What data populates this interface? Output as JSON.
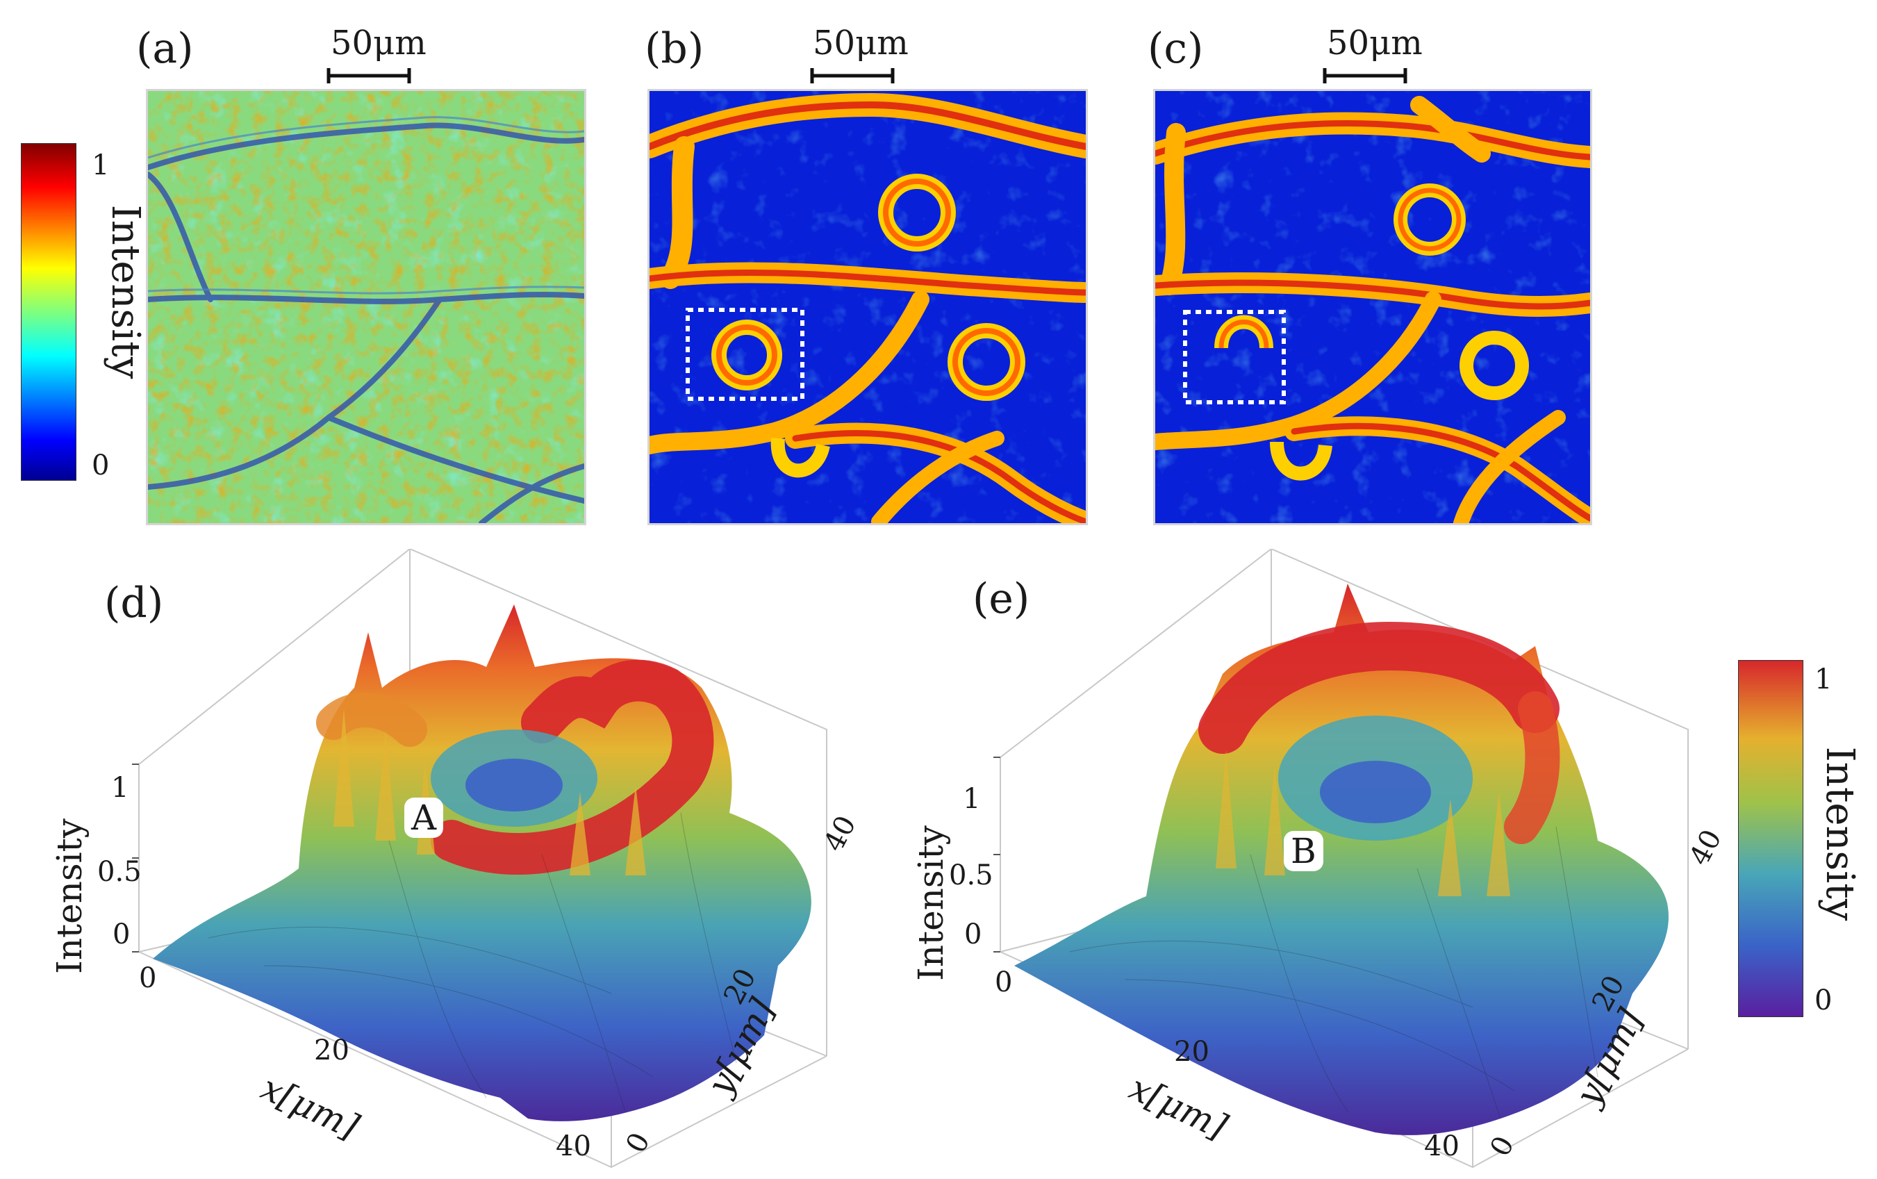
{
  "figure": {
    "panels": [
      {
        "id": "a",
        "label": "(a)",
        "scale_bar": "50μm"
      },
      {
        "id": "b",
        "label": "(b)",
        "scale_bar": "50μm"
      },
      {
        "id": "c",
        "label": "(c)",
        "scale_bar": "50μm"
      },
      {
        "id": "d",
        "label": "(d)",
        "peak_label": "A"
      },
      {
        "id": "e",
        "label": "(e)",
        "peak_label": "B"
      }
    ],
    "colorbars": [
      {
        "title": "Intensity",
        "max_label": "1",
        "min_label": "0",
        "colormap": "jet"
      },
      {
        "title": "Intensity",
        "max_label": "1",
        "min_label": "0",
        "colormap": "rainbow"
      }
    ],
    "surface_axes": {
      "x_title": "x[μm]",
      "y_title": "y[μm]",
      "z_title": "Intensity",
      "x_ticks": [
        "0",
        "20",
        "40"
      ],
      "y_ticks": [
        "0",
        "20",
        "40"
      ],
      "z_ticks": [
        "1",
        "0.5",
        "0"
      ]
    },
    "colors": {
      "jet_low": "#00008f",
      "jet_mid": "#00c0ff",
      "jet_high": "#800000",
      "rainbow_low": "#5a1fa0",
      "rainbow_high": "#d7262b"
    }
  }
}
